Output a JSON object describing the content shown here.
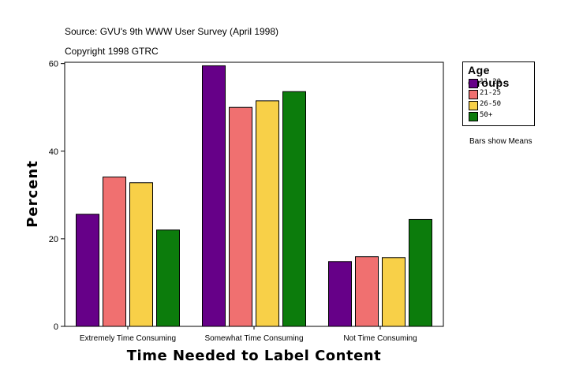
{
  "source_line": "Source: GVU's 9th WWW User Survey (April 1998)",
  "copyright_line": "Copyright 1998 GTRC",
  "note": "Bars show Means",
  "legend": {
    "title": "Age Groups",
    "items": [
      {
        "label": "11-20",
        "color": "#660088"
      },
      {
        "label": "21-25",
        "color": "#f07070"
      },
      {
        "label": "26-50",
        "color": "#f8d048"
      },
      {
        "label": "50+",
        "color": "#0c7c0c"
      }
    ]
  },
  "chart_data": {
    "type": "bar",
    "title": "",
    "xlabel": "Time Needed to Label Content",
    "ylabel": "Percent",
    "categories": [
      "Extremely Time Consuming",
      "Somewhat Time Consuming",
      "Not Time Consuming"
    ],
    "series": [
      {
        "name": "11-20",
        "color": "#660088",
        "values": [
          25.6,
          59.5,
          14.8
        ]
      },
      {
        "name": "21-25",
        "color": "#f07070",
        "values": [
          34.1,
          50.0,
          15.9
        ]
      },
      {
        "name": "26-50",
        "color": "#f8d048",
        "values": [
          32.8,
          51.5,
          15.7
        ]
      },
      {
        "name": "50+",
        "color": "#0c7c0c",
        "values": [
          22.0,
          53.6,
          24.4
        ]
      }
    ],
    "ylim": [
      0,
      60.3
    ],
    "yticks": [
      0,
      20,
      40,
      60
    ],
    "grid": false,
    "legend_position": "right"
  }
}
